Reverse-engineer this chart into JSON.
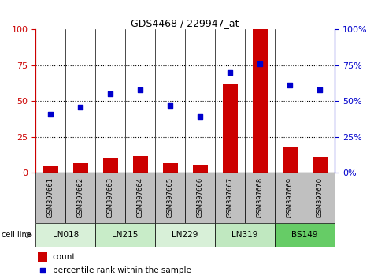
{
  "title": "GDS4468 / 229947_at",
  "samples": [
    "GSM397661",
    "GSM397662",
    "GSM397663",
    "GSM397664",
    "GSM397665",
    "GSM397666",
    "GSM397667",
    "GSM397668",
    "GSM397669",
    "GSM397670"
  ],
  "count_values": [
    5,
    7,
    10,
    12,
    7,
    6,
    62,
    100,
    18,
    11
  ],
  "percentile_values": [
    41,
    46,
    55,
    58,
    47,
    39,
    70,
    76,
    61,
    58
  ],
  "cell_lines": [
    {
      "name": "LN018",
      "start": 0,
      "end": 1
    },
    {
      "name": "LN215",
      "start": 2,
      "end": 3
    },
    {
      "name": "LN229",
      "start": 4,
      "end": 5
    },
    {
      "name": "LN319",
      "start": 6,
      "end": 7
    },
    {
      "name": "BS149",
      "start": 8,
      "end": 9
    }
  ],
  "cell_line_colors": [
    "#d8f0d8",
    "#c8ecc8",
    "#d8f0d8",
    "#c0e8c0",
    "#66cc66"
  ],
  "yticks": [
    0,
    25,
    50,
    75,
    100
  ],
  "bar_color": "#cc0000",
  "dot_color": "#0000cc",
  "axis_left_color": "#cc0000",
  "axis_right_color": "#0000cc",
  "sample_bg_color": "#c0c0c0",
  "figsize": [
    4.75,
    3.54
  ],
  "dpi": 100
}
